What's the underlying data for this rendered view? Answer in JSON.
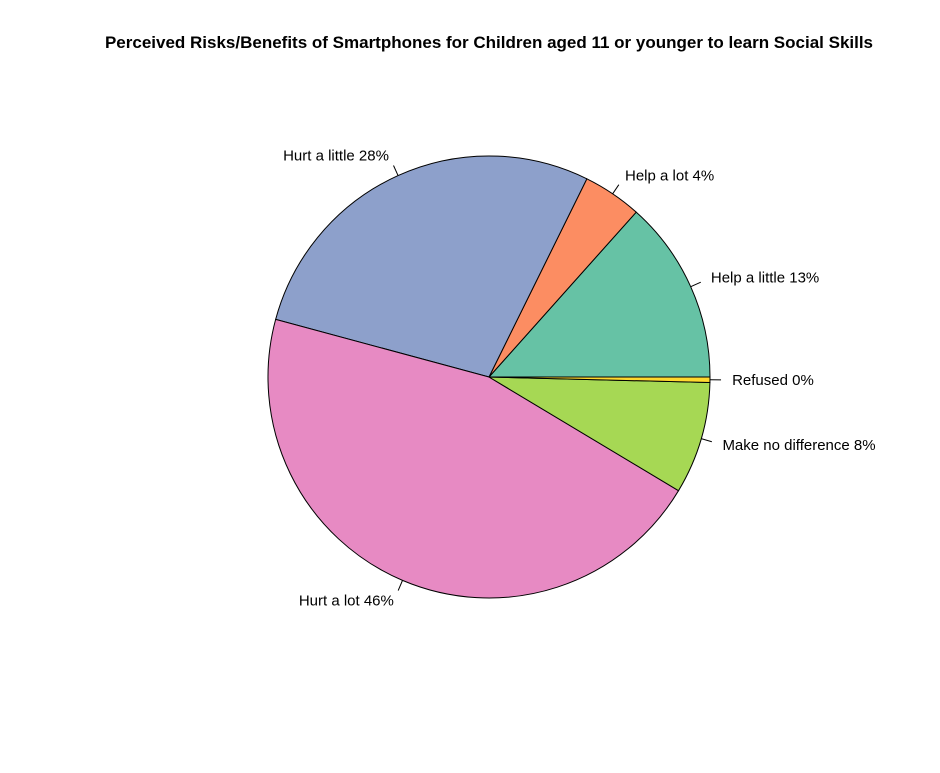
{
  "chart_data": {
    "type": "pie",
    "title": "Perceived Risks/Benefits of Smartphones for Children aged 11 or younger to learn Social Skills",
    "start_angle_deg": 0,
    "direction": "counterclockwise",
    "slices": [
      {
        "label": "Help a little 13%",
        "value": 13.4,
        "color": "#66c2a5"
      },
      {
        "label": "Help a lot 4%",
        "value": 4.3,
        "color": "#fc8d62"
      },
      {
        "label": "Hurt a little 28%",
        "value": 28.1,
        "color": "#8da0cb"
      },
      {
        "label": "Hurt a lot 46%",
        "value": 45.6,
        "color": "#e78ac3"
      },
      {
        "label": "Make no difference 8%",
        "value": 8.2,
        "color": "#a6d854"
      },
      {
        "label": "Refused 0%",
        "value": 0.4,
        "color": "#ffd92f"
      }
    ]
  }
}
